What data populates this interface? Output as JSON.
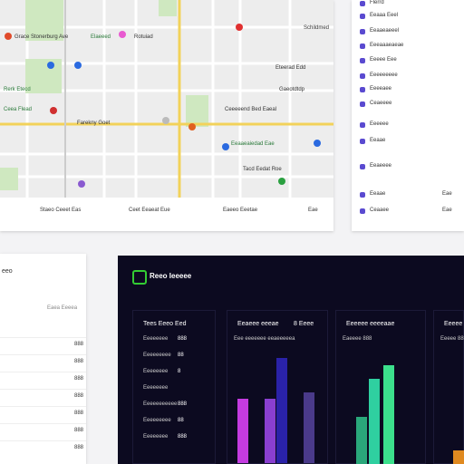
{
  "map": {
    "labels": [
      "Grace Stonerburg Ave",
      "Elaeeed",
      "Rotuiad",
      "Schildmed",
      "Rerk Etecd",
      "Eteerad Edd",
      "Gaeotdtdp",
      "Ceea Flead",
      "Farekny Goet",
      "Ceeeeend Bed Eaeal",
      "Eeaaeaiedad Eae",
      "Tacd Eedat Roe"
    ],
    "legend": [
      "Staeo Ceeet Eas",
      "Ceet Eeaeat Eue",
      "Eaeeo Eeetae",
      "Eae"
    ]
  },
  "side_list": {
    "items": [
      {
        "label": "Flerrd"
      },
      {
        "label": "Eeaaa Eeel"
      },
      {
        "label": "Eeaaeaeeel"
      },
      {
        "label": "Eeeaaaeaeae"
      },
      {
        "label": "Eeeee Eee"
      },
      {
        "label": "Eeeeeeeee"
      },
      {
        "label": "Eeeeaee"
      },
      {
        "label": "Ceaeeee"
      },
      {
        "label": "Eeeeee"
      },
      {
        "label": "Eeaae"
      },
      {
        "label": "Eeaeeee"
      },
      {
        "label": "Eeaae",
        "right": "Eae"
      },
      {
        "label": "Ceaaee",
        "right": "Eae"
      }
    ]
  },
  "left_panel": {
    "title": "eeo",
    "subheader": "Eaea Eeeea",
    "rows": [
      "888",
      "888",
      "888",
      "888",
      "888",
      "888",
      "888"
    ]
  },
  "dashboard": {
    "title": "Reeo Ieeeee",
    "cards": [
      {
        "title": "Tees Eeeo Eed",
        "rows": [
          [
            "Eeeeeeee",
            "888"
          ],
          [
            "Eeeeeeeee",
            "88"
          ],
          [
            "Eeeeeeee",
            "8"
          ],
          [
            "Eeeeeeee",
            ""
          ],
          [
            "Eeeeeeeeeee",
            "888"
          ],
          [
            "Eeeeeeeee",
            "88"
          ],
          [
            "Eeeeeeee",
            "888"
          ]
        ],
        "bars": [
          {
            "value": 72,
            "color": "#c43be0"
          },
          {
            "value": 72,
            "color": "#8a3fd0"
          },
          {
            "value": 117,
            "color": "#2a22a8"
          },
          {
            "value": 79,
            "color": "#4a3a8a"
          }
        ]
      },
      {
        "title": "Eeaeee eeeae",
        "badge": "8 Eeee",
        "sub": "Eee eeeeeee eeaeeeeea",
        "bars": []
      },
      {
        "title": "Eeeeee eeeeaae",
        "sub": "Eaeeee 888",
        "bars": [
          {
            "value": 52,
            "color": "#2aa77a"
          },
          {
            "value": 94,
            "color": "#2fd0a0"
          },
          {
            "value": 109,
            "color": "#3ce08c"
          }
        ]
      },
      {
        "title": "Eeeee",
        "sub": "Eeeee 888",
        "bars": [
          {
            "value": 15,
            "color": "#e08a20"
          }
        ]
      }
    ]
  }
}
